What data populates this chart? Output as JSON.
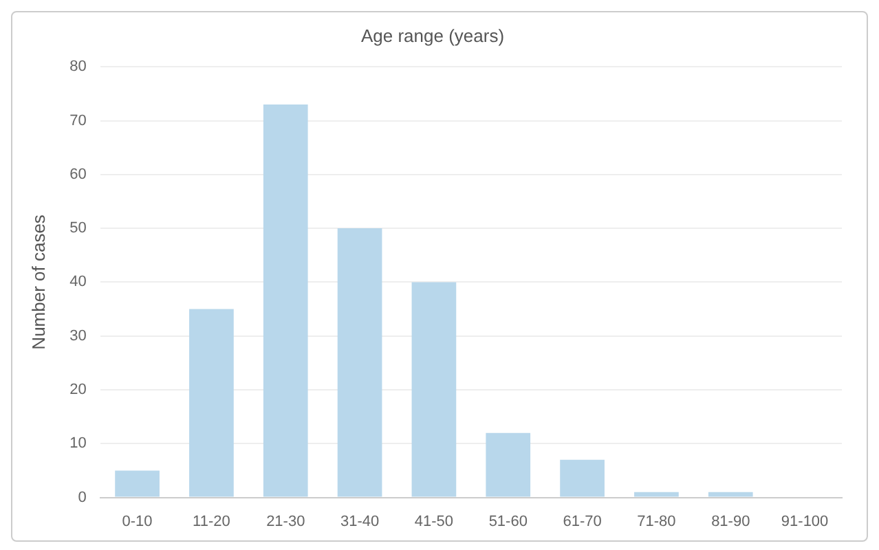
{
  "chart_data": {
    "type": "bar",
    "title": "Age range (years)",
    "ylabel": "Number of cases",
    "categories": [
      "0-10",
      "11-20",
      "21-30",
      "31-40",
      "41-50",
      "51-60",
      "61-70",
      "71-80",
      "81-90",
      "91-100"
    ],
    "values": [
      5,
      35,
      73,
      50,
      40,
      12,
      7,
      1,
      1,
      0
    ],
    "color": "#b8d7eb",
    "ylim": [
      0,
      80
    ],
    "yticks": [
      0,
      10,
      20,
      30,
      40,
      50,
      60,
      70,
      80
    ],
    "grid": "y",
    "legend": false
  }
}
